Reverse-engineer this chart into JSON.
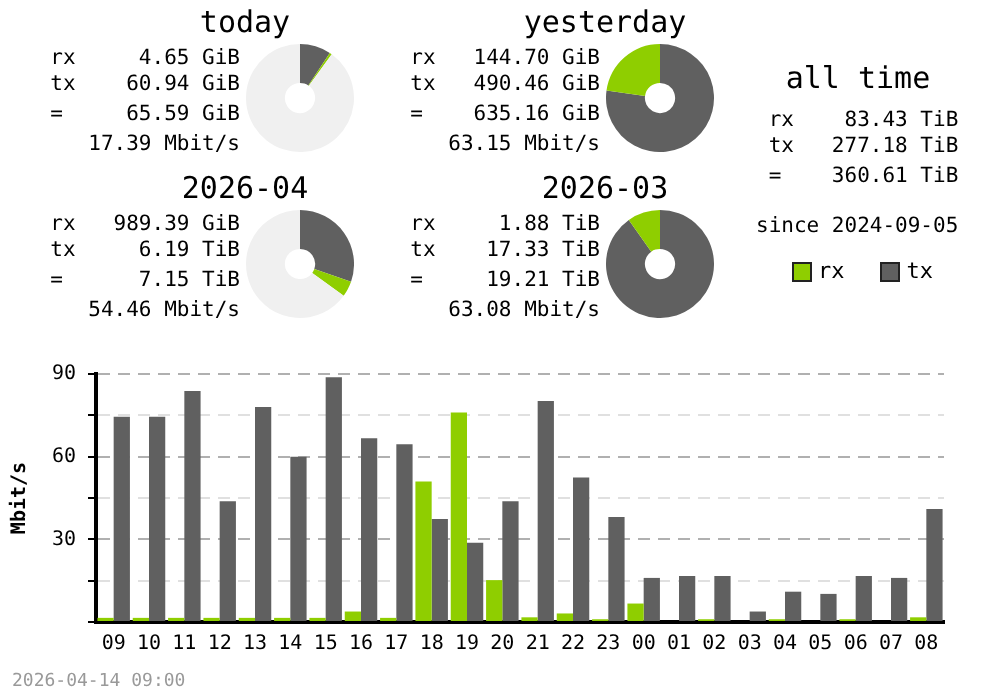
{
  "chart_data": [
    {
      "type": "donut",
      "title": "today",
      "annotations": [
        "rx     4.65 GiB",
        "tx    60.94 GiB",
        "=     65.59 GiB",
        "17.39 Mbit/s"
      ],
      "categories": [
        null,
        null,
        null
      ],
      "values": [
        9.3,
        0.7,
        90
      ],
      "colors": [
        "#606060",
        "#8fce00",
        "#f0f0f0"
      ]
    },
    {
      "type": "donut",
      "title": "yesterday",
      "annotations": [
        "rx   144.70 GiB",
        "tx   490.46 GiB",
        "=    635.16 GiB",
        "63.15 Mbit/s"
      ],
      "categories": [
        null,
        null
      ],
      "values": [
        77.2,
        22.8
      ],
      "colors": [
        "#606060",
        "#8fce00"
      ]
    },
    {
      "type": "other",
      "title": "all time",
      "annotations": [
        "rx    83.43 TiB",
        "tx   277.18 TiB",
        "=    360.61 TiB",
        "since 2024-09-05"
      ]
    },
    {
      "type": "donut",
      "title": "2026-04",
      "annotations": [
        "rx   989.39 GiB",
        "tx     6.19 TiB",
        "=      7.15 TiB",
        "54.46 Mbit/s"
      ],
      "categories": [
        null,
        null,
        null
      ],
      "values": [
        30.3,
        4.7,
        65
      ],
      "colors": [
        "#606060",
        "#8fce00",
        "#f0f0f0"
      ]
    },
    {
      "type": "donut",
      "title": "2026-03",
      "annotations": [
        "rx     1.88 TiB",
        "tx    17.33 TiB",
        "=     19.21 TiB",
        "63.08 Mbit/s"
      ],
      "categories": [
        null,
        null
      ],
      "values": [
        90.2,
        9.8
      ],
      "colors": [
        "#606060",
        "#8fce00"
      ]
    },
    {
      "type": "bar",
      "ylabel": "Mbit/s",
      "annotations": [
        "2026-04-14 09:00"
      ],
      "categories": [
        "09",
        "10",
        "11",
        "12",
        "13",
        "14",
        "15",
        "16",
        "17",
        "18",
        "19",
        "20",
        "21",
        "22",
        "23",
        "00",
        "01",
        "02",
        "03",
        "04",
        "05",
        "06",
        "07",
        "08"
      ],
      "series": [
        {
          "name": "rx",
          "color": "#8fce00",
          "values": [
            1.5,
            1.5,
            1.5,
            1.5,
            1.5,
            1.5,
            1.5,
            3.8,
            1.5,
            51,
            76,
            15.2,
            1.7,
            3.1,
            1,
            6.7,
            0,
            1,
            0,
            1,
            0,
            1,
            0,
            1.7
          ]
        },
        {
          "name": "tx",
          "color": "#606060",
          "values": [
            74.5,
            74.5,
            83.8,
            43.8,
            78,
            60,
            88.8,
            66.7,
            64.5,
            37.4,
            28.8,
            43.8,
            80.2,
            52.4,
            38.1,
            16,
            16.7,
            16.7,
            3.8,
            11,
            10.2,
            16.7,
            16,
            41
          ]
        }
      ],
      "ylim": [
        0,
        90
      ],
      "yticks": [
        {
          "value": 0,
          "label": null
        },
        {
          "value": 15,
          "label": null
        },
        30,
        {
          "value": 45,
          "label": null
        },
        60,
        {
          "value": 75,
          "label": null
        },
        90
      ],
      "grid": "y",
      "legend": "top right"
    }
  ]
}
